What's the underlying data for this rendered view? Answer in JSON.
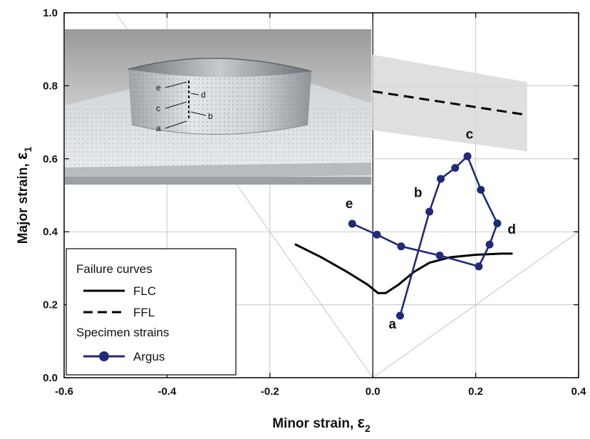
{
  "chart_data": {
    "type": "line",
    "xlabel": "Minor strain, ",
    "xlabel_symbol": "ε",
    "xlabel_sub": "2",
    "ylabel": "Major strain, ",
    "ylabel_symbol": "ε",
    "ylabel_sub": "1",
    "xlim": [
      -0.6,
      0.4
    ],
    "ylim": [
      0.0,
      1.0
    ],
    "x_ticks": [
      -0.6,
      -0.4,
      -0.2,
      0.0,
      0.2,
      0.4
    ],
    "x_tick_labels": [
      "-0.6",
      "-0.4",
      "-0.2",
      "0.0",
      "0.2",
      "0.4"
    ],
    "y_ticks": [
      0.0,
      0.2,
      0.4,
      0.6,
      0.8,
      1.0
    ],
    "y_tick_labels": [
      "0.0",
      "0.2",
      "0.4",
      "0.6",
      "0.8",
      "1.0"
    ],
    "grid": true,
    "legend_position": "bottom-left",
    "legend": {
      "group1_title": "Failure curves",
      "flc_label": "FLC",
      "ffl_label": "FFL",
      "group2_title": "Specimen strains",
      "argus_label": "Argus"
    },
    "reference_lines": [
      {
        "x": [
          0.0,
          -0.5
        ],
        "y": [
          0.0,
          1.0
        ]
      },
      {
        "x": [
          0.0,
          0.4
        ],
        "y": [
          0.0,
          0.4
        ]
      }
    ],
    "ffl_band": {
      "x": [
        -0.06,
        0.3
      ],
      "upper": [
        0.9,
        0.81
      ],
      "lower": [
        0.69,
        0.62
      ]
    },
    "series": [
      {
        "name": "FLC",
        "style": "solid",
        "color": "#000000",
        "x": [
          -0.15,
          -0.1,
          -0.05,
          -0.01,
          0.01,
          0.025,
          0.05,
          0.08,
          0.11,
          0.15,
          0.2,
          0.25,
          0.27
        ],
        "y": [
          0.365,
          0.33,
          0.29,
          0.255,
          0.232,
          0.232,
          0.255,
          0.29,
          0.315,
          0.33,
          0.337,
          0.34,
          0.34
        ]
      },
      {
        "name": "FFL",
        "style": "dashed",
        "color": "#000000",
        "x": [
          0.0,
          0.3
        ],
        "y": [
          0.785,
          0.72
        ]
      },
      {
        "name": "Argus",
        "style": "marker-line",
        "color": "#1f2a7a",
        "x": [
          0.053,
          0.11,
          0.132,
          0.16,
          0.184,
          0.21,
          0.242,
          0.227,
          0.206,
          0.13,
          0.055,
          0.008,
          -0.04
        ],
        "y": [
          0.17,
          0.455,
          0.545,
          0.575,
          0.607,
          0.515,
          0.423,
          0.365,
          0.305,
          0.335,
          0.36,
          0.392,
          0.422
        ]
      }
    ],
    "annotations": [
      {
        "text": "a",
        "x": 0.038,
        "y": 0.135
      },
      {
        "text": "b",
        "x": 0.088,
        "y": 0.495
      },
      {
        "text": "c",
        "x": 0.188,
        "y": 0.655
      },
      {
        "text": "d",
        "x": 0.27,
        "y": 0.395
      },
      {
        "text": "e",
        "x": -0.046,
        "y": 0.465
      }
    ],
    "inset_photo": {
      "labels": [
        "e",
        "c",
        "a",
        "d",
        "b"
      ]
    }
  }
}
